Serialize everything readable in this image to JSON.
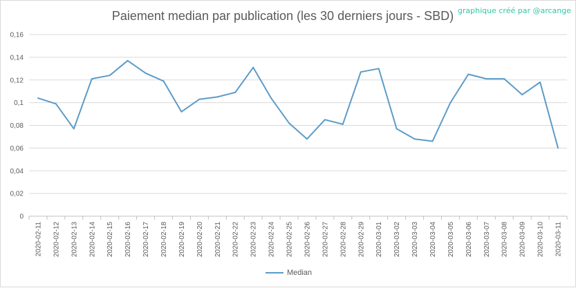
{
  "credit": "graphique créé par @arcange",
  "chart_data": {
    "type": "line",
    "title": "Paiement median par publication (les 30 derniers jours - SBD)",
    "xlabel": "",
    "ylabel": "",
    "ylim": [
      0,
      0.16
    ],
    "yticks": [
      "0",
      "0,02",
      "0,04",
      "0,06",
      "0,08",
      "0,1",
      "0,12",
      "0,14",
      "0,16"
    ],
    "grid": true,
    "legend_position": "bottom",
    "categories": [
      "2020-02-11",
      "2020-02-12",
      "2020-02-13",
      "2020-02-14",
      "2020-02-15",
      "2020-02-16",
      "2020-02-17",
      "2020-02-18",
      "2020-02-19",
      "2020-02-20",
      "2020-02-21",
      "2020-02-22",
      "2020-02-23",
      "2020-02-24",
      "2020-02-25",
      "2020-02-26",
      "2020-02-27",
      "2020-02-28",
      "2020-02-29",
      "2020-03-01",
      "2020-03-02",
      "2020-03-03",
      "2020-03-04",
      "2020-03-05",
      "2020-03-06",
      "2020-03-07",
      "2020-03-08",
      "2020-03-09",
      "2020-03-10",
      "2020-03-11"
    ],
    "series": [
      {
        "name": "Median",
        "color": "#5b9bc8",
        "values": [
          0.104,
          0.099,
          0.077,
          0.121,
          0.124,
          0.137,
          0.126,
          0.119,
          0.092,
          0.103,
          0.105,
          0.109,
          0.131,
          0.104,
          0.082,
          0.068,
          0.085,
          0.081,
          0.127,
          0.13,
          0.077,
          0.068,
          0.066,
          0.1,
          0.125,
          0.121,
          0.121,
          0.107,
          0.118,
          0.06
        ]
      }
    ]
  }
}
